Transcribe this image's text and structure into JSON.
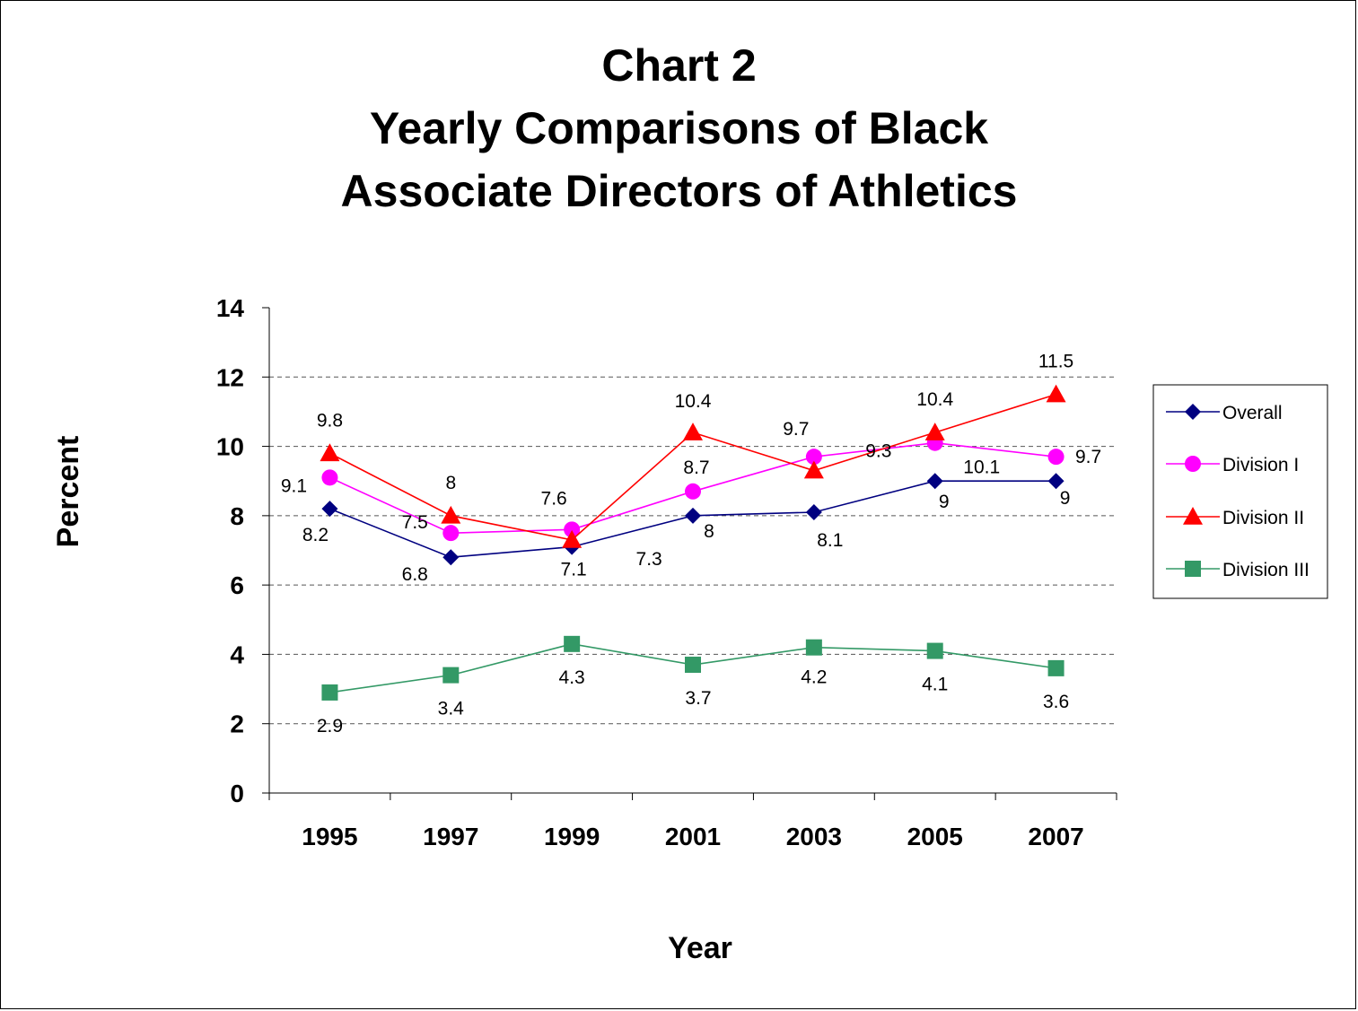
{
  "chart_data": {
    "type": "line",
    "title_lines": [
      "Chart 2",
      "Yearly Comparisons of Black",
      "Associate Directors of Athletics"
    ],
    "xlabel": "Year",
    "ylabel": "Percent",
    "categories": [
      "1995",
      "1997",
      "1999",
      "2001",
      "2003",
      "2005",
      "2007"
    ],
    "ylim": [
      0,
      14
    ],
    "yticks": [
      "0",
      "2",
      "4",
      "6",
      "8",
      "10",
      "12",
      "14"
    ],
    "grid": "horizontal dashed",
    "legend_position": "right",
    "series": [
      {
        "name": "Overall",
        "color": "#000080",
        "marker": "diamond",
        "values": [
          8.2,
          6.8,
          7.1,
          8,
          8.1,
          9,
          9
        ],
        "labels": [
          "8.2",
          "6.8",
          "7.1",
          "8",
          "8.1",
          "9",
          "9"
        ]
      },
      {
        "name": "Division I",
        "color": "#FF00FF",
        "marker": "circle",
        "values": [
          9.1,
          7.5,
          7.6,
          8.7,
          9.7,
          10.1,
          9.7
        ],
        "labels": [
          "9.1",
          "7.5",
          "7.6",
          "8.7",
          "9.7",
          "10.1",
          "9.7"
        ]
      },
      {
        "name": "Division II",
        "color": "#FF0000",
        "marker": "triangle",
        "values": [
          9.8,
          8,
          7.3,
          10.4,
          9.3,
          10.4,
          11.5
        ],
        "labels": [
          "9.8",
          "8",
          "7.3",
          "10.4",
          "9.3",
          "10.4",
          "11.5"
        ]
      },
      {
        "name": "Division III",
        "color": "#339966",
        "marker": "square",
        "values": [
          2.9,
          3.4,
          4.3,
          3.7,
          4.2,
          4.1,
          3.6
        ],
        "labels": [
          "2.9",
          "3.4",
          "4.3",
          "3.7",
          "4.2",
          "4.1",
          "3.6"
        ]
      }
    ]
  }
}
